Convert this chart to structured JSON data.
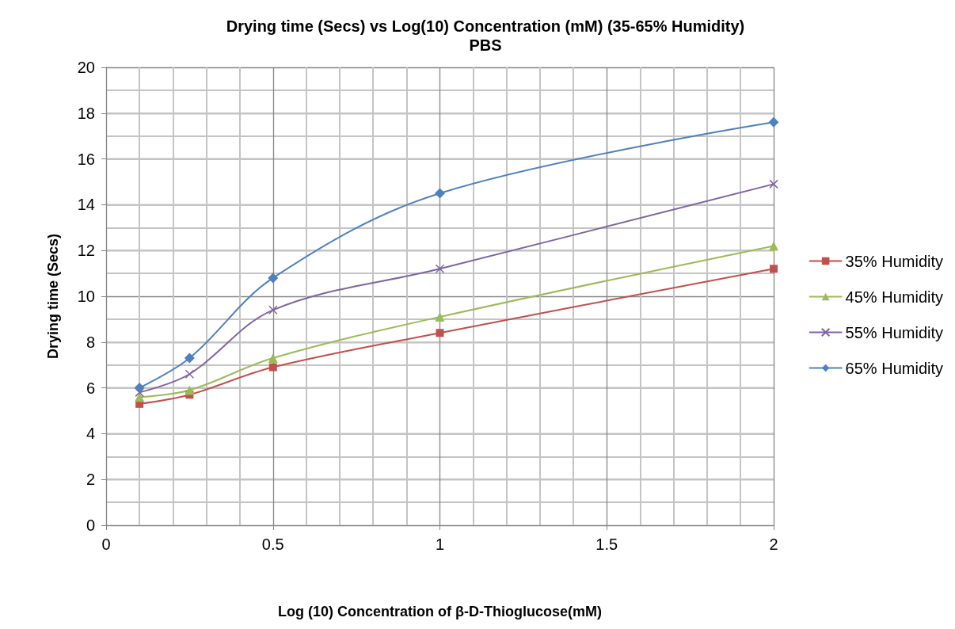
{
  "chart_data": {
    "type": "line",
    "title": "Drying time (Secs) vs Log(10) Concentration (mM) (35-65% Humidity)",
    "subtitle": "PBS",
    "xlabel": "Log (10) Concentration of β-D-Thioglucose(mM)",
    "ylabel": "Drying time (Secs)",
    "x": [
      0.1,
      0.25,
      0.5,
      1,
      2
    ],
    "series": [
      {
        "name": "35% Humidity",
        "color": "#c0504d",
        "marker": "square",
        "values": [
          5.3,
          5.7,
          6.9,
          8.4,
          11.2
        ]
      },
      {
        "name": "45% Humidity",
        "color": "#9bbb59",
        "marker": "triangle",
        "values": [
          5.6,
          5.9,
          7.3,
          9.1,
          12.2
        ]
      },
      {
        "name": "55% Humidity",
        "color": "#8064a2",
        "marker": "cross",
        "values": [
          5.8,
          6.6,
          9.4,
          11.2,
          14.9
        ]
      },
      {
        "name": "65% Humidity",
        "color": "#4f81bd",
        "marker": "diamond",
        "values": [
          6.0,
          7.3,
          10.8,
          14.5,
          17.6
        ]
      }
    ],
    "xlim": [
      0,
      2
    ],
    "xticks": [
      0,
      0.5,
      1,
      1.5,
      2
    ],
    "ylim": [
      0,
      20
    ],
    "yticks": [
      0,
      2,
      4,
      6,
      8,
      10,
      12,
      14,
      16,
      18,
      20
    ],
    "grid": true,
    "legend": "right",
    "line_style": "solid"
  }
}
